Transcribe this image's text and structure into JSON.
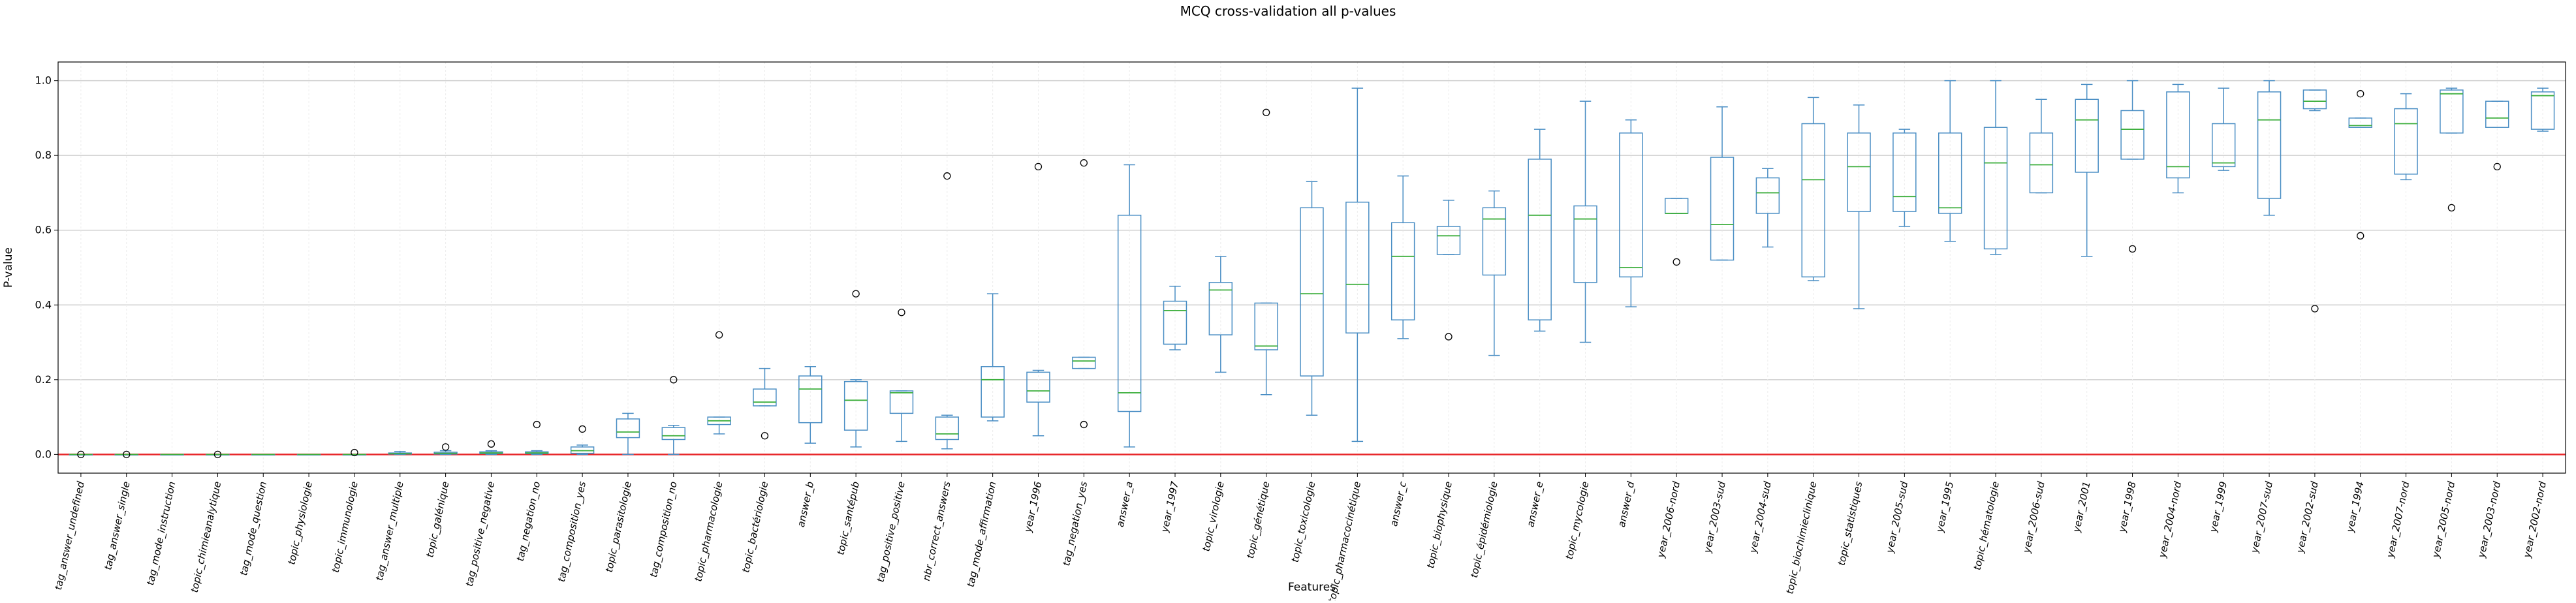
{
  "chart_data": {
    "type": "boxplot",
    "title": "MCQ cross-validation all p-values",
    "xlabel": "Features",
    "ylabel": "P-value",
    "ylim": [
      -0.05,
      1.05
    ],
    "yticks": [
      "0.0",
      "0.2",
      "0.4",
      "0.6",
      "0.8",
      "1.0"
    ],
    "ytick_values": [
      0.0,
      0.2,
      0.4,
      0.6,
      0.8,
      1.0
    ],
    "grid": true,
    "reference_line": {
      "y": 0.0,
      "color": "#e8282b"
    },
    "colors": {
      "box": "#4a8ec4",
      "median": "#3cae3c",
      "whisker": "#4a8ec4",
      "grid": "#cfcfcf",
      "flier": "#000000"
    },
    "categories": [
      "tag_answer_undefined",
      "tag_answer_single",
      "tag_mode_instruction",
      "topic_chimieanalytique",
      "tag_mode_question",
      "topic_physiologie",
      "topic_immunologie",
      "tag_answer_multiple",
      "topic_galénique",
      "tag_positive_negative",
      "tag_negation_no",
      "tag_composition_yes",
      "topic_parasitologie",
      "tag_composition_no",
      "topic_pharmacologie",
      "topic_bactériologie",
      "answer_b",
      "topic_santépub",
      "tag_positive_positive",
      "nbr_correct_answers",
      "tag_mode_affirmation",
      "year_1996",
      "tag_negation_yes",
      "answer_a",
      "year_1997",
      "topic_virologie",
      "topic_génétique",
      "topic_toxicologie",
      "topic_pharmacocinétique",
      "answer_c",
      "topic_biophysique",
      "topic_épidémiologie",
      "answer_e",
      "topic_mycologie",
      "answer_d",
      "year_2006-nord",
      "year_2003-sud",
      "year_2004-sud",
      "topic_biochimieclinique",
      "topic_statistiques",
      "year_2005-sud",
      "year_1995",
      "topic_hématologie",
      "year_2006-sud",
      "year_2001",
      "year_1998",
      "year_2004-nord",
      "year_1999",
      "year_2007-sud",
      "year_2002-sud",
      "year_1994",
      "year_2007-nord",
      "year_2005-nord",
      "year_2003-nord",
      "year_2002-nord"
    ],
    "boxes": [
      {
        "whislo": 0.0,
        "q1": 0.0,
        "med": 0.0,
        "q3": 0.0,
        "whishi": 0.0,
        "fliers": [
          0.0
        ]
      },
      {
        "whislo": 0.0,
        "q1": 0.0,
        "med": 0.0,
        "q3": 0.0,
        "whishi": 0.0,
        "fliers": [
          0.0
        ]
      },
      {
        "whislo": 0.0,
        "q1": 0.0,
        "med": 0.0,
        "q3": 0.0,
        "whishi": 0.0,
        "fliers": []
      },
      {
        "whislo": 0.0,
        "q1": 0.0,
        "med": 0.0,
        "q3": 0.0,
        "whishi": 0.0,
        "fliers": [
          0.0
        ]
      },
      {
        "whislo": 0.0,
        "q1": 0.0,
        "med": 0.0,
        "q3": 0.0,
        "whishi": 0.0,
        "fliers": []
      },
      {
        "whislo": 0.0,
        "q1": 0.0,
        "med": 0.0,
        "q3": 0.0,
        "whishi": 0.0,
        "fliers": []
      },
      {
        "whislo": 0.0,
        "q1": 0.0,
        "med": 0.0,
        "q3": 0.0,
        "whishi": 0.0,
        "fliers": [
          0.005
        ]
      },
      {
        "whislo": 0.0,
        "q1": 0.001,
        "med": 0.002,
        "q3": 0.004,
        "whishi": 0.008,
        "fliers": []
      },
      {
        "whislo": 0.0,
        "q1": 0.001,
        "med": 0.003,
        "q3": 0.006,
        "whishi": 0.01,
        "fliers": [
          0.02
        ]
      },
      {
        "whislo": 0.0,
        "q1": 0.002,
        "med": 0.004,
        "q3": 0.007,
        "whishi": 0.01,
        "fliers": [
          0.028
        ]
      },
      {
        "whislo": 0.0,
        "q1": 0.002,
        "med": 0.004,
        "q3": 0.007,
        "whishi": 0.01,
        "fliers": [
          0.08
        ]
      },
      {
        "whislo": 0.0,
        "q1": 0.003,
        "med": 0.01,
        "q3": 0.02,
        "whishi": 0.025,
        "fliers": [
          0.068
        ]
      },
      {
        "whislo": 0.0,
        "q1": 0.045,
        "med": 0.06,
        "q3": 0.095,
        "whishi": 0.11,
        "fliers": []
      },
      {
        "whislo": 0.0,
        "q1": 0.04,
        "med": 0.05,
        "q3": 0.072,
        "whishi": 0.078,
        "fliers": [
          0.2
        ]
      },
      {
        "whislo": 0.055,
        "q1": 0.08,
        "med": 0.09,
        "q3": 0.1,
        "whishi": 0.1,
        "fliers": [
          0.32
        ]
      },
      {
        "whislo": 0.13,
        "q1": 0.13,
        "med": 0.14,
        "q3": 0.175,
        "whishi": 0.23,
        "fliers": [
          0.05
        ]
      },
      {
        "whislo": 0.03,
        "q1": 0.085,
        "med": 0.175,
        "q3": 0.21,
        "whishi": 0.235,
        "fliers": []
      },
      {
        "whislo": 0.02,
        "q1": 0.065,
        "med": 0.145,
        "q3": 0.195,
        "whishi": 0.2,
        "fliers": [
          0.43
        ]
      },
      {
        "whislo": 0.035,
        "q1": 0.11,
        "med": 0.165,
        "q3": 0.17,
        "whishi": 0.17,
        "fliers": [
          0.38
        ]
      },
      {
        "whislo": 0.015,
        "q1": 0.04,
        "med": 0.055,
        "q3": 0.1,
        "whishi": 0.105,
        "fliers": [
          0.745
        ]
      },
      {
        "whislo": 0.09,
        "q1": 0.1,
        "med": 0.2,
        "q3": 0.235,
        "whishi": 0.43,
        "fliers": []
      },
      {
        "whislo": 0.05,
        "q1": 0.14,
        "med": 0.17,
        "q3": 0.22,
        "whishi": 0.225,
        "fliers": [
          0.77
        ]
      },
      {
        "whislo": 0.23,
        "q1": 0.23,
        "med": 0.25,
        "q3": 0.26,
        "whishi": 0.26,
        "fliers": [
          0.08,
          0.78
        ]
      },
      {
        "whislo": 0.02,
        "q1": 0.115,
        "med": 0.165,
        "q3": 0.64,
        "whishi": 0.775,
        "fliers": []
      },
      {
        "whislo": 0.28,
        "q1": 0.295,
        "med": 0.385,
        "q3": 0.41,
        "whishi": 0.45,
        "fliers": []
      },
      {
        "whislo": 0.22,
        "q1": 0.32,
        "med": 0.44,
        "q3": 0.46,
        "whishi": 0.53,
        "fliers": []
      },
      {
        "whislo": 0.16,
        "q1": 0.28,
        "med": 0.29,
        "q3": 0.405,
        "whishi": 0.405,
        "fliers": [
          0.915
        ]
      },
      {
        "whislo": 0.105,
        "q1": 0.21,
        "med": 0.43,
        "q3": 0.66,
        "whishi": 0.73,
        "fliers": []
      },
      {
        "whislo": 0.035,
        "q1": 0.325,
        "med": 0.455,
        "q3": 0.675,
        "whishi": 0.98,
        "fliers": []
      },
      {
        "whislo": 0.31,
        "q1": 0.36,
        "med": 0.53,
        "q3": 0.62,
        "whishi": 0.745,
        "fliers": []
      },
      {
        "whislo": 0.535,
        "q1": 0.535,
        "med": 0.585,
        "q3": 0.61,
        "whishi": 0.68,
        "fliers": [
          0.315
        ]
      },
      {
        "whislo": 0.265,
        "q1": 0.48,
        "med": 0.63,
        "q3": 0.66,
        "whishi": 0.705,
        "fliers": []
      },
      {
        "whislo": 0.33,
        "q1": 0.36,
        "med": 0.64,
        "q3": 0.79,
        "whishi": 0.87,
        "fliers": []
      },
      {
        "whislo": 0.3,
        "q1": 0.46,
        "med": 0.63,
        "q3": 0.665,
        "whishi": 0.945,
        "fliers": []
      },
      {
        "whislo": 0.395,
        "q1": 0.475,
        "med": 0.5,
        "q3": 0.86,
        "whishi": 0.895,
        "fliers": []
      },
      {
        "whislo": 0.645,
        "q1": 0.645,
        "med": 0.645,
        "q3": 0.685,
        "whishi": 0.685,
        "fliers": [
          0.515
        ]
      },
      {
        "whislo": 0.52,
        "q1": 0.52,
        "med": 0.615,
        "q3": 0.795,
        "whishi": 0.93,
        "fliers": []
      },
      {
        "whislo": 0.555,
        "q1": 0.645,
        "med": 0.7,
        "q3": 0.74,
        "whishi": 0.765,
        "fliers": []
      },
      {
        "whislo": 0.465,
        "q1": 0.475,
        "med": 0.735,
        "q3": 0.885,
        "whishi": 0.955,
        "fliers": []
      },
      {
        "whislo": 0.39,
        "q1": 0.65,
        "med": 0.77,
        "q3": 0.86,
        "whishi": 0.935,
        "fliers": []
      },
      {
        "whislo": 0.61,
        "q1": 0.65,
        "med": 0.69,
        "q3": 0.86,
        "whishi": 0.87,
        "fliers": []
      },
      {
        "whislo": 0.57,
        "q1": 0.645,
        "med": 0.66,
        "q3": 0.86,
        "whishi": 1.0,
        "fliers": []
      },
      {
        "whislo": 0.535,
        "q1": 0.55,
        "med": 0.78,
        "q3": 0.875,
        "whishi": 1.0,
        "fliers": []
      },
      {
        "whislo": 0.7,
        "q1": 0.7,
        "med": 0.775,
        "q3": 0.86,
        "whishi": 0.95,
        "fliers": []
      },
      {
        "whislo": 0.53,
        "q1": 0.755,
        "med": 0.895,
        "q3": 0.95,
        "whishi": 0.99,
        "fliers": []
      },
      {
        "whislo": 0.79,
        "q1": 0.79,
        "med": 0.87,
        "q3": 0.92,
        "whishi": 1.0,
        "fliers": [
          0.55
        ]
      },
      {
        "whislo": 0.7,
        "q1": 0.74,
        "med": 0.77,
        "q3": 0.97,
        "whishi": 0.99,
        "fliers": []
      },
      {
        "whislo": 0.76,
        "q1": 0.77,
        "med": 0.78,
        "q3": 0.885,
        "whishi": 0.98,
        "fliers": []
      },
      {
        "whislo": 0.64,
        "q1": 0.685,
        "med": 0.895,
        "q3": 0.97,
        "whishi": 1.0,
        "fliers": []
      },
      {
        "whislo": 0.92,
        "q1": 0.925,
        "med": 0.945,
        "q3": 0.975,
        "whishi": 0.975,
        "fliers": [
          0.39
        ]
      },
      {
        "whislo": 0.875,
        "q1": 0.875,
        "med": 0.88,
        "q3": 0.9,
        "whishi": 0.9,
        "fliers": [
          0.585,
          0.965
        ]
      },
      {
        "whislo": 0.735,
        "q1": 0.75,
        "med": 0.885,
        "q3": 0.925,
        "whishi": 0.965,
        "fliers": []
      },
      {
        "whislo": 0.86,
        "q1": 0.86,
        "med": 0.965,
        "q3": 0.975,
        "whishi": 0.98,
        "fliers": [
          0.66
        ]
      },
      {
        "whislo": 0.875,
        "q1": 0.875,
        "med": 0.9,
        "q3": 0.945,
        "whishi": 0.945,
        "fliers": [
          0.77
        ]
      },
      {
        "whislo": 0.865,
        "q1": 0.87,
        "med": 0.96,
        "q3": 0.97,
        "whishi": 0.98,
        "fliers": []
      }
    ]
  }
}
